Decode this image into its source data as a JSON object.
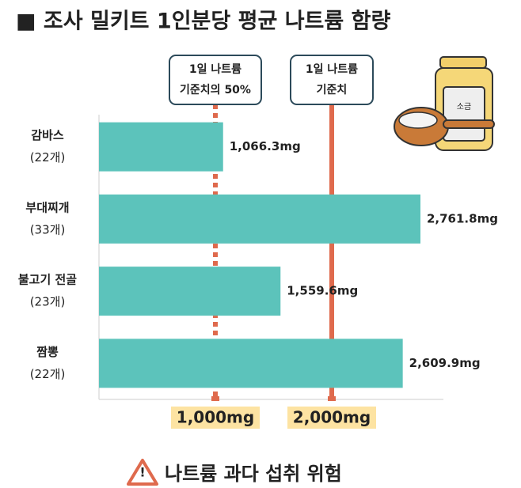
{
  "chart_data": {
    "type": "bar",
    "orientation": "horizontal",
    "title": "■ 조사 밀키트 1인분당 평균 나트륨 함량",
    "categories": [
      "감바스",
      "부대찌개",
      "불고기 전골",
      "짬뽕"
    ],
    "category_notes": [
      "(22개)",
      "(33개)",
      "(23개)",
      "(22개)"
    ],
    "values": [
      1066.3,
      2761.8,
      1559.6,
      2609.9
    ],
    "value_labels": [
      "1,066.3mg",
      "2,761.8mg",
      "1,559.6mg",
      "2,609.9mg"
    ],
    "color": "#5cc3bb",
    "xlim": [
      0,
      3000
    ],
    "xticks": [
      {
        "value": 1000,
        "label": "1,000mg"
      },
      {
        "value": 2000,
        "label": "2,000mg"
      }
    ],
    "reference_lines": [
      {
        "value": 1000,
        "style": "dashed",
        "color": "#df6a4d",
        "label": [
          "1일 나트륨",
          "기준치의 50%"
        ]
      },
      {
        "value": 2000,
        "style": "solid",
        "color": "#df6a4d",
        "label": [
          "1일  나트륨",
          "기준치"
        ]
      }
    ],
    "warning": "나트륨 과다 섭취 위험"
  }
}
